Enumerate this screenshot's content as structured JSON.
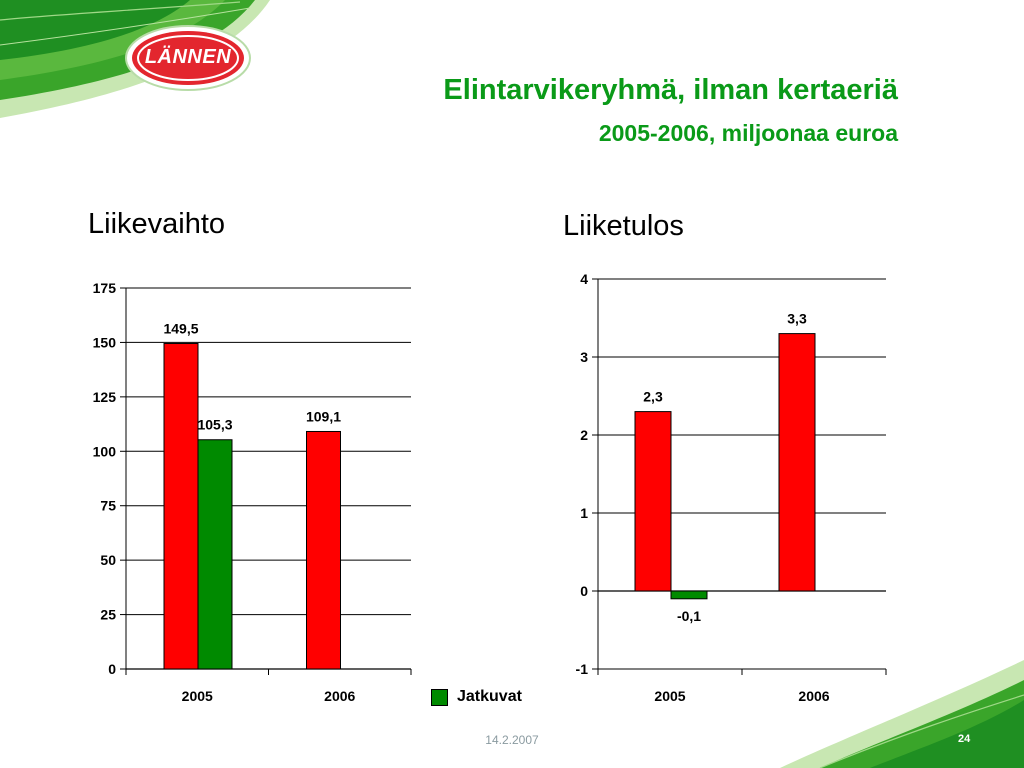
{
  "slide": {
    "title": "Elintarvikeryhmä, ilman kertaeriä",
    "subtitle": "2005-2006, miljoonaa euroa",
    "logo_text": "LÄNNEN",
    "date": "14.2.2007",
    "page_number": "24",
    "accent_color": "#0a9a18"
  },
  "legend": {
    "label": "Jatkuvat",
    "color": "#008a00"
  },
  "chart_data": [
    {
      "type": "bar",
      "title": "Liikevaihto",
      "categories": [
        "2005",
        "2006"
      ],
      "series": [
        {
          "color": "#ff0000",
          "values": [
            149.5,
            109.1
          ],
          "labels": [
            "149,5",
            "109,1"
          ]
        },
        {
          "name": "Jatkuvat",
          "color": "#008a00",
          "values": [
            105.3,
            null
          ],
          "labels": [
            "105,3",
            ""
          ]
        }
      ],
      "ylim": [
        0,
        175
      ],
      "yticks": [
        0,
        25,
        50,
        75,
        100,
        125,
        150,
        175
      ],
      "grid": true,
      "legend": "bottom-right"
    },
    {
      "type": "bar",
      "title": "Liiketulos",
      "categories": [
        "2005",
        "2006"
      ],
      "series": [
        {
          "color": "#ff0000",
          "values": [
            2.3,
            3.3
          ],
          "labels": [
            "2,3",
            "3,3"
          ]
        },
        {
          "name": "Jatkuvat",
          "color": "#008a00",
          "values": [
            -0.1,
            null
          ],
          "labels": [
            "-0,1",
            ""
          ]
        }
      ],
      "ylim": [
        -1,
        4
      ],
      "yticks": [
        -1,
        0,
        1,
        2,
        3,
        4
      ],
      "grid": true,
      "legend": "bottom-left"
    }
  ]
}
